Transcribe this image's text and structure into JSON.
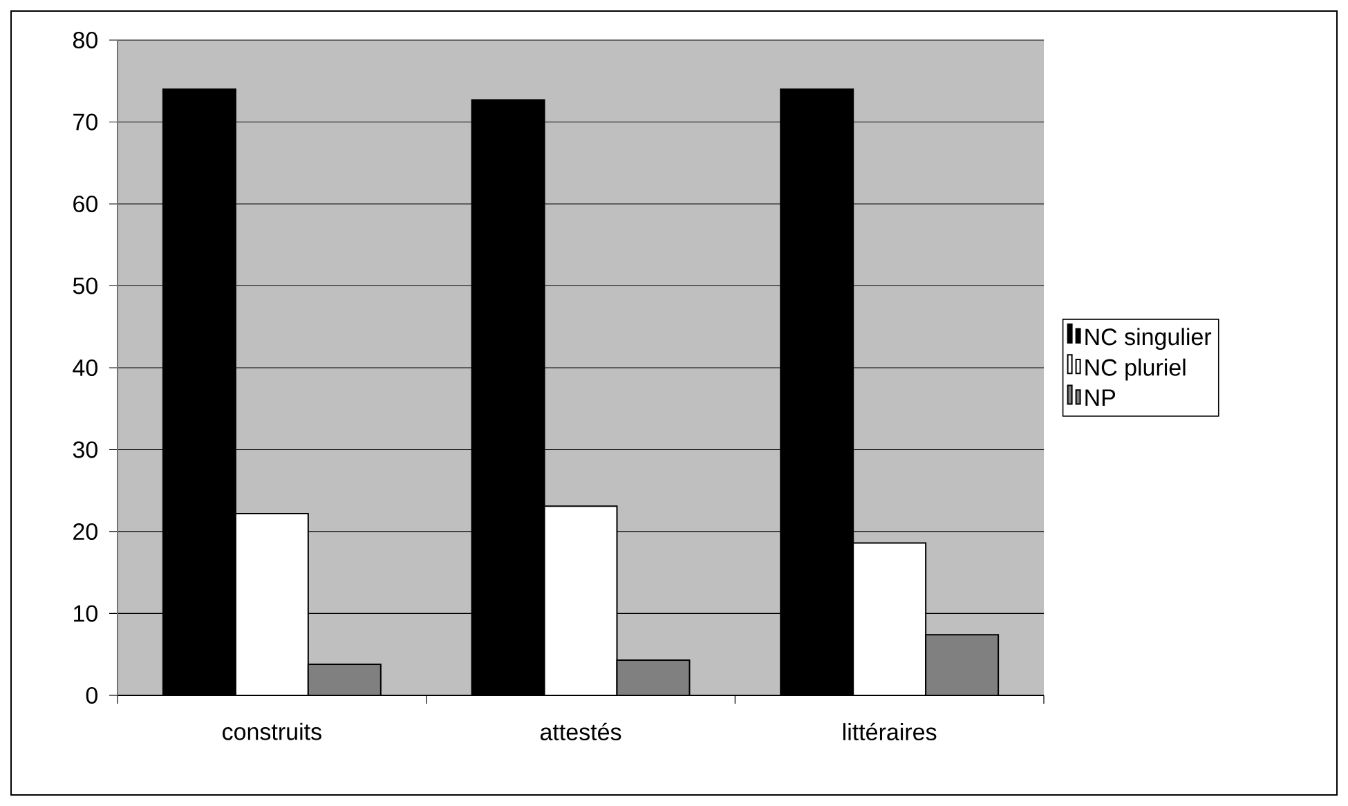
{
  "chart_data": {
    "type": "bar",
    "categories": [
      "construits",
      "attestés",
      "littéraires"
    ],
    "series": [
      {
        "name": "NC singulier",
        "color": "#000000",
        "values": [
          74.0,
          72.7,
          74.0
        ]
      },
      {
        "name": "NC pluriel",
        "color": "#ffffff",
        "values": [
          22.2,
          23.1,
          18.6
        ]
      },
      {
        "name": "NP",
        "color": "#808080",
        "values": [
          3.8,
          4.3,
          7.4
        ]
      }
    ],
    "ylim": [
      0,
      80
    ],
    "yticks": [
      0,
      10,
      20,
      30,
      40,
      50,
      60,
      70,
      80
    ],
    "grid": "y",
    "legend": "right"
  }
}
